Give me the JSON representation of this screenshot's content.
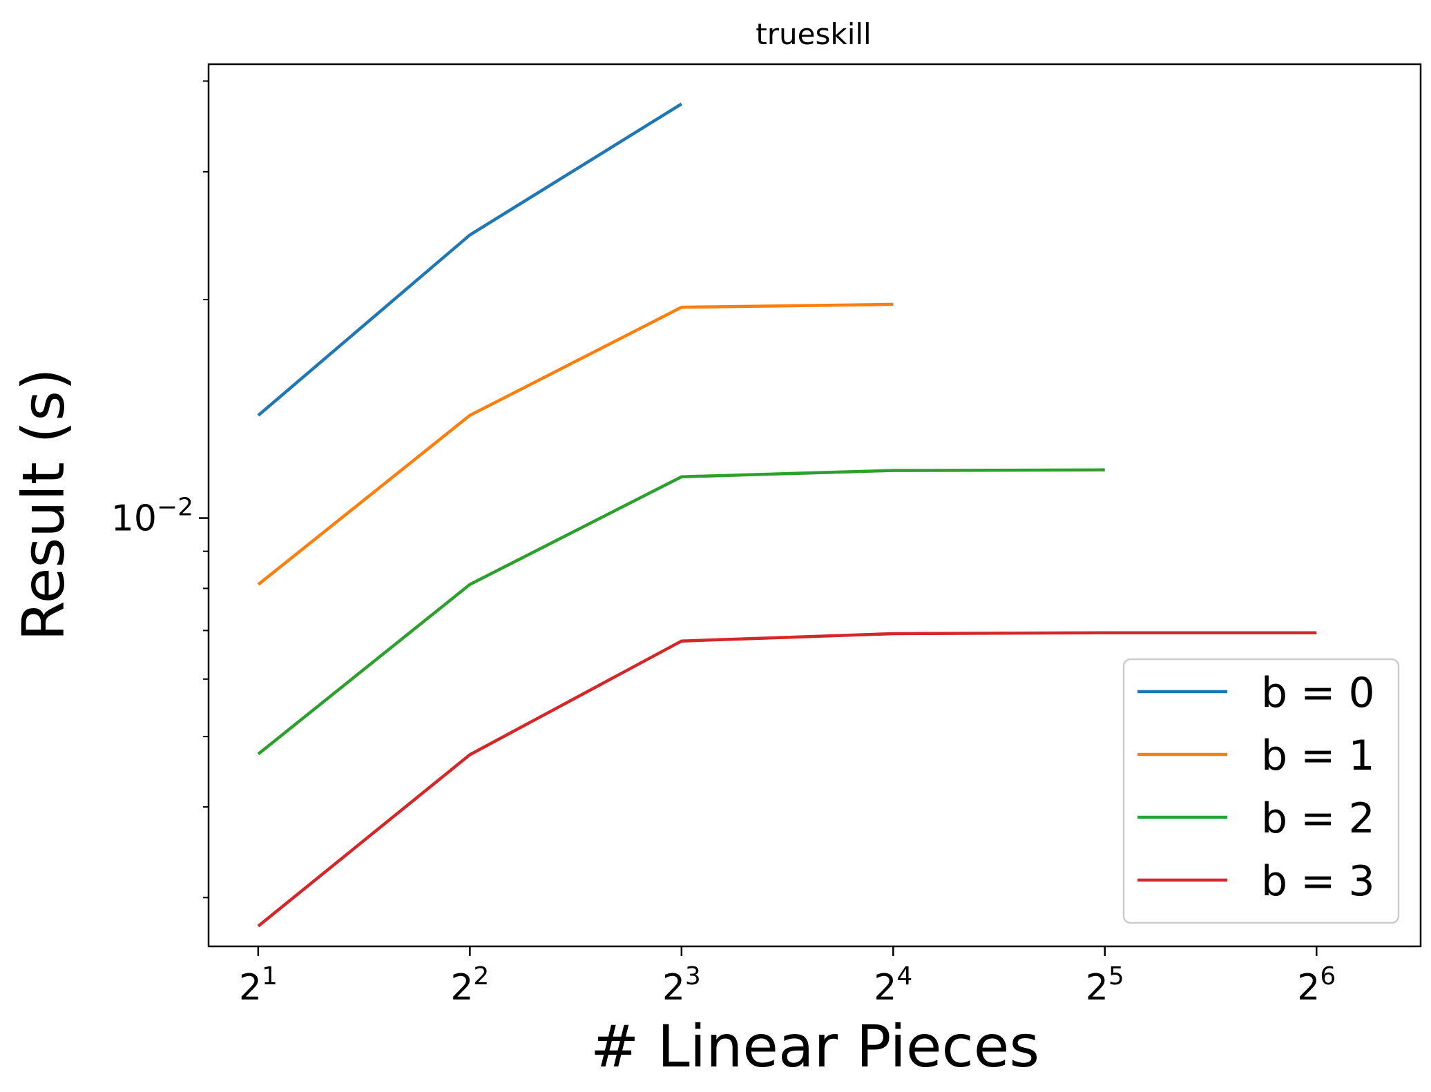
{
  "chart_data": {
    "type": "line",
    "title": "trueskill",
    "xlabel": "# Linear Pieces",
    "ylabel": "Result (s)",
    "x_scale": "log2",
    "y_scale": "log10",
    "x": [
      2,
      4,
      8,
      16,
      32,
      64
    ],
    "x_tick_labels": [
      {
        "base": "2",
        "exp": "1"
      },
      {
        "base": "2",
        "exp": "2"
      },
      {
        "base": "2",
        "exp": "3"
      },
      {
        "base": "2",
        "exp": "4"
      },
      {
        "base": "2",
        "exp": "5"
      },
      {
        "base": "2",
        "exp": "6"
      }
    ],
    "y_tick_labels": [
      {
        "value": 0.01,
        "base": "10",
        "exp": "−2"
      }
    ],
    "xlim": [
      1.7,
      90
    ],
    "ylim": [
      0.00257,
      0.0422
    ],
    "grid": false,
    "legend_position": "lower right",
    "series": [
      {
        "name": "b = 0",
        "color": "#1f77b4",
        "values": [
          0.01385,
          0.02455,
          0.0372,
          null,
          null,
          null
        ]
      },
      {
        "name": "b = 1",
        "color": "#ff7f0e",
        "values": [
          0.0081,
          0.01385,
          0.01952,
          0.0197,
          null,
          null
        ]
      },
      {
        "name": "b = 2",
        "color": "#2ca02c",
        "values": [
          0.00473,
          0.0081,
          0.0114,
          0.01163,
          0.01165,
          null
        ]
      },
      {
        "name": "b = 3",
        "color": "#d62728",
        "values": [
          0.00274,
          0.00472,
          0.00677,
          0.00693,
          0.00695,
          0.00695
        ]
      }
    ]
  }
}
